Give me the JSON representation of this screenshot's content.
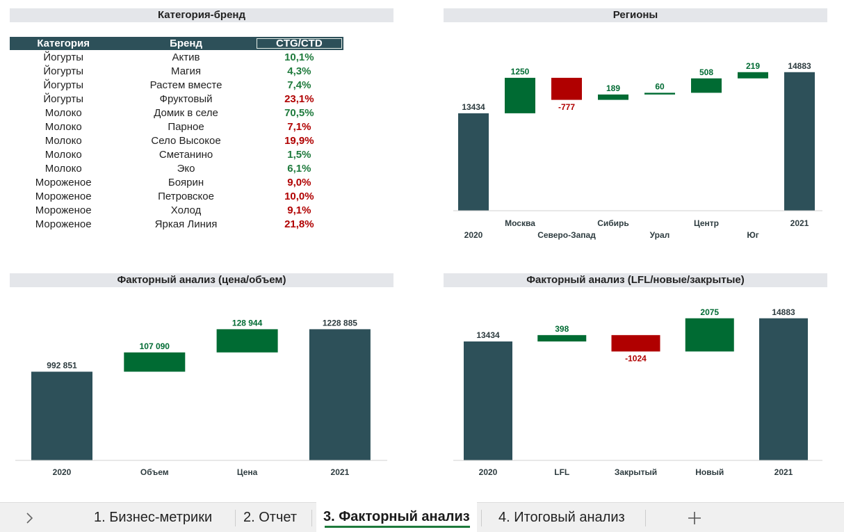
{
  "table": {
    "title": "Категория-бренд",
    "columns": [
      "Категория",
      "Бренд",
      "CTG/CTD"
    ],
    "rows": [
      [
        "Йогурты",
        "Актив",
        "10,1%"
      ],
      [
        "Йогурты",
        "Магия",
        "4,3%"
      ],
      [
        "Йогурты",
        "Растем вместе",
        "7,4%"
      ],
      [
        "Йогурты",
        "Фруктовый",
        "23,1%"
      ],
      [
        "Молоко",
        "Домик в селе",
        "70,5%"
      ],
      [
        "Молоко",
        "Парное",
        "7,1%"
      ],
      [
        "Молоко",
        "Село Высокое",
        "19,9%"
      ],
      [
        "Молоко",
        "Сметанино",
        "1,5%"
      ],
      [
        "Молоко",
        "Эко",
        "6,1%"
      ],
      [
        "Мороженое",
        "Боярин",
        "9,0%"
      ],
      [
        "Мороженое",
        "Петровское",
        "10,0%"
      ],
      [
        "Мороженое",
        "Холод",
        "9,1%"
      ],
      [
        "Мороженое",
        "Яркая Линия",
        "21,8%"
      ]
    ],
    "value_colors": [
      "#1e7a3c",
      "#1e7a3c",
      "#1e7a3c",
      "#b00000",
      "#1e7a3c",
      "#b00000",
      "#b00000",
      "#1e7a3c",
      "#1e7a3c",
      "#b00000",
      "#b00000",
      "#b00000",
      "#b00000"
    ]
  },
  "chart_data": [
    {
      "type": "waterfall",
      "title": "Регионы",
      "categories": [
        "2020",
        "Москва",
        "Северо-Запад",
        "Сибирь",
        "Урал",
        "Центр",
        "Юг",
        "2021"
      ],
      "values": [
        13434,
        1250,
        -777,
        189,
        60,
        508,
        219,
        14883
      ],
      "ylim": [
        10000,
        15000
      ],
      "total_color": "#2d5059",
      "increase_color": "#006b33",
      "decrease_color": "#b00000"
    },
    {
      "type": "waterfall",
      "title": "Факторный анализ (цена/объем)",
      "categories": [
        "2020",
        "Объем",
        "Цена",
        "2021"
      ],
      "values": [
        992851,
        107090,
        128944,
        1228885
      ],
      "value_labels": [
        "992 851",
        "107 090",
        "128 944",
        "1228 885"
      ],
      "ylim": [
        500000,
        1300000
      ],
      "total_color": "#2d5059",
      "increase_color": "#006b33",
      "decrease_color": "#b00000"
    },
    {
      "type": "waterfall",
      "title": "Факторный анализ (LFL/новые/закрытые)",
      "categories": [
        "2020",
        "LFL",
        "Закрытый",
        "Новый",
        "2021"
      ],
      "values": [
        13434,
        398,
        -1024,
        2075,
        14883
      ],
      "ylim": [
        6000,
        15000
      ],
      "total_color": "#2d5059",
      "increase_color": "#006b33",
      "decrease_color": "#b00000"
    }
  ],
  "tabs": {
    "items": [
      "1. Бизнес-метрики",
      "2. Отчет",
      "3. Факторный анализ",
      "4. Итоговый анализ"
    ],
    "active": 2
  }
}
